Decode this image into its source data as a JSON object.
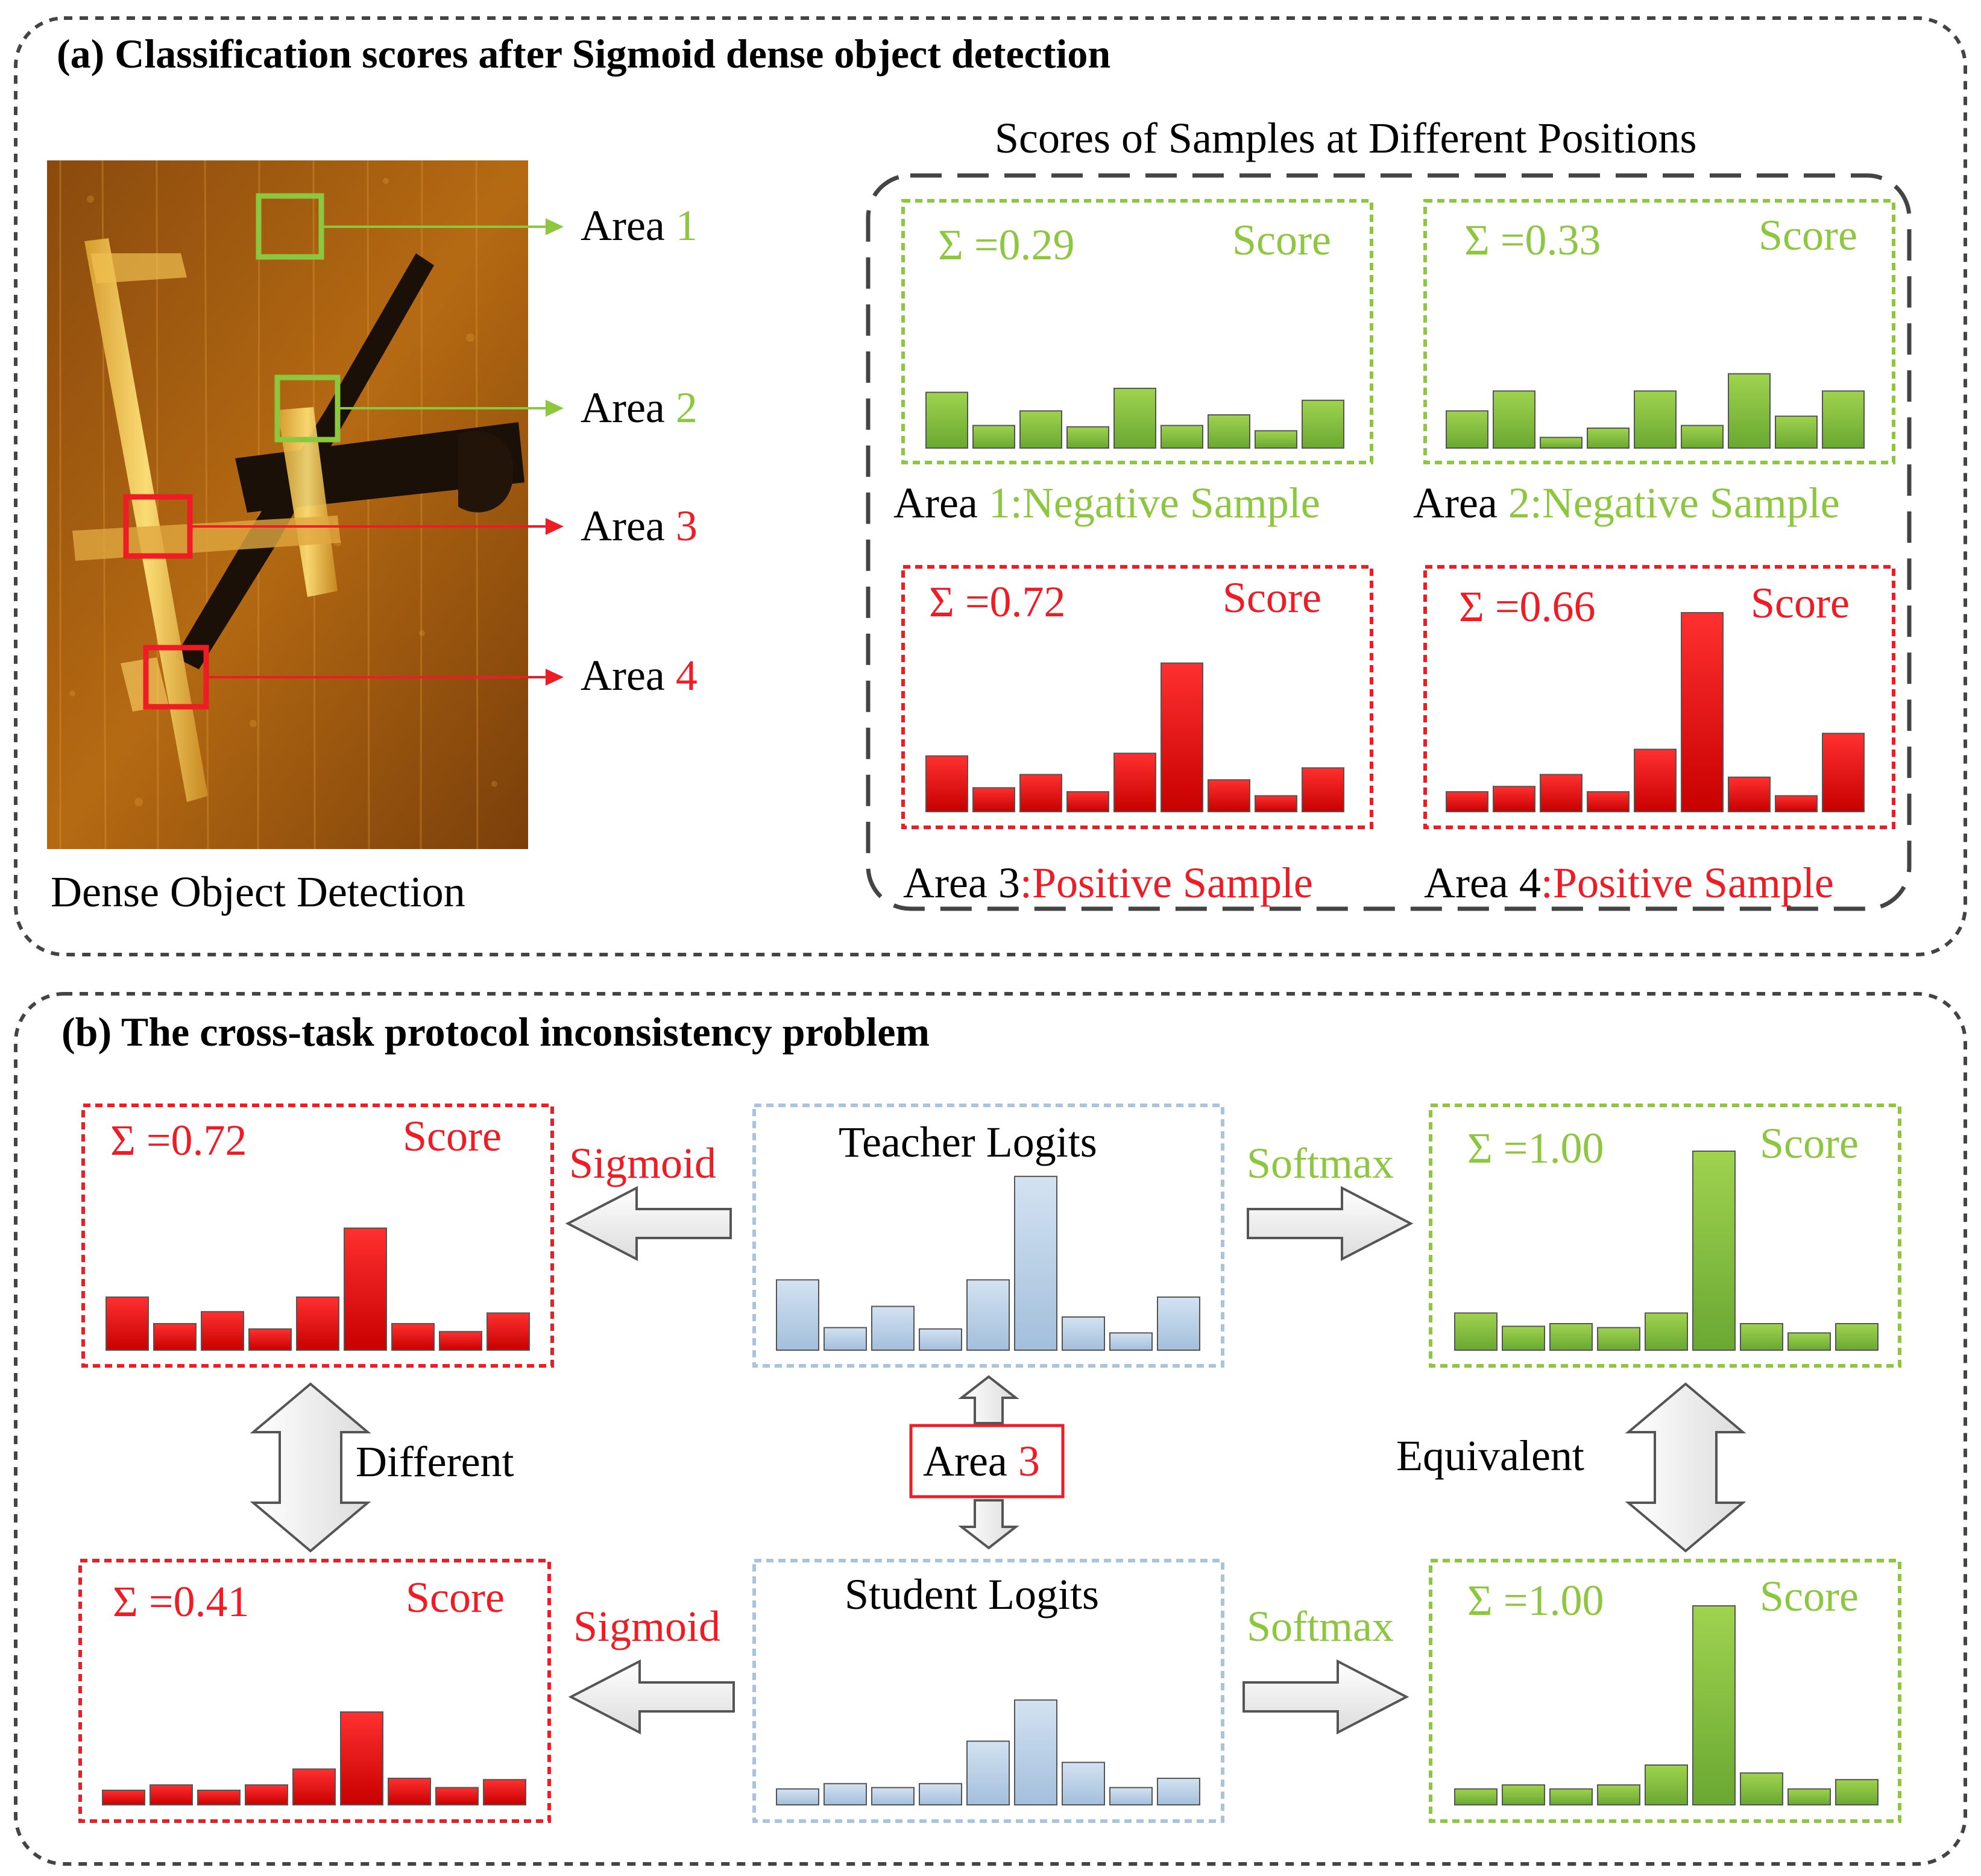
{
  "panel_a": {
    "title": "(a) Classification scores after Sigmoid dense object detection",
    "image_caption": "Dense Object Detection",
    "scores_title": "Scores of Samples at Different Positions",
    "area_prefix": "Area",
    "area_numbers": [
      "1",
      "2",
      "3",
      "4"
    ],
    "cards": [
      {
        "sum": "Σ =0.29",
        "score_label": "Score",
        "caption_area": "Area ",
        "caption_num": "1:Negative Sample",
        "color": "#8dc63f",
        "values": [
          0.42,
          0.17,
          0.28,
          0.16,
          0.45,
          0.17,
          0.25,
          0.13,
          0.36
        ]
      },
      {
        "sum": "Σ =0.33",
        "score_label": "Score",
        "caption_area": "Area ",
        "caption_num": "2:Negative Sample",
        "color": "#8dc63f",
        "values": [
          0.28,
          0.43,
          0.08,
          0.15,
          0.43,
          0.17,
          0.56,
          0.24,
          0.43
        ]
      },
      {
        "sum": "Σ =0.72",
        "score_label": "Score",
        "caption_area": "Area 3",
        "caption_num": ":Positive Sample",
        "color": "#ee1c24",
        "values": [
          0.42,
          0.18,
          0.28,
          0.15,
          0.44,
          1.12,
          0.24,
          0.12,
          0.33
        ]
      },
      {
        "sum": "Σ =0.66",
        "score_label": "Score",
        "caption_area": "Area 4",
        "caption_num": ":Positive Sample",
        "color": "#ee1c24",
        "values": [
          0.15,
          0.19,
          0.28,
          0.15,
          0.47,
          1.5,
          0.26,
          0.12,
          0.59
        ]
      }
    ]
  },
  "panel_b": {
    "title": "(b) The cross-task protocol inconsistency problem",
    "teacher_label": "Teacher Logits",
    "student_label": "Student Logits",
    "teacher_values": [
      0.53,
      0.17,
      0.33,
      0.16,
      0.53,
      1.31,
      0.25,
      0.13,
      0.4
    ],
    "student_values": [
      0.12,
      0.16,
      0.13,
      0.16,
      0.48,
      0.79,
      0.32,
      0.13,
      0.2
    ],
    "sigmoid_label": "Sigmoid",
    "softmax_label": "Softmax",
    "different_label": "Different",
    "equivalent_label": "Equivalent",
    "area_label": "Area",
    "area_number": "3",
    "score_label": "Score",
    "teacher_sigmoid": {
      "sum": "Σ =0.72",
      "values": [
        0.4,
        0.2,
        0.29,
        0.16,
        0.4,
        0.92,
        0.2,
        0.14,
        0.28
      ]
    },
    "teacher_softmax": {
      "sum": "Σ =1.00",
      "values": [
        0.28,
        0.18,
        0.2,
        0.17,
        0.28,
        1.5,
        0.2,
        0.13,
        0.2
      ]
    },
    "student_sigmoid": {
      "sum": "Σ =0.41",
      "values": [
        0.11,
        0.15,
        0.11,
        0.15,
        0.27,
        0.7,
        0.2,
        0.13,
        0.19
      ]
    },
    "student_softmax": {
      "sum": "Σ =1.00",
      "values": [
        0.12,
        0.15,
        0.12,
        0.15,
        0.3,
        1.5,
        0.24,
        0.12,
        0.19
      ]
    },
    "colors": {
      "red": "#ee1c24",
      "green": "#8dc63f",
      "blue": "#a9c4de"
    }
  }
}
